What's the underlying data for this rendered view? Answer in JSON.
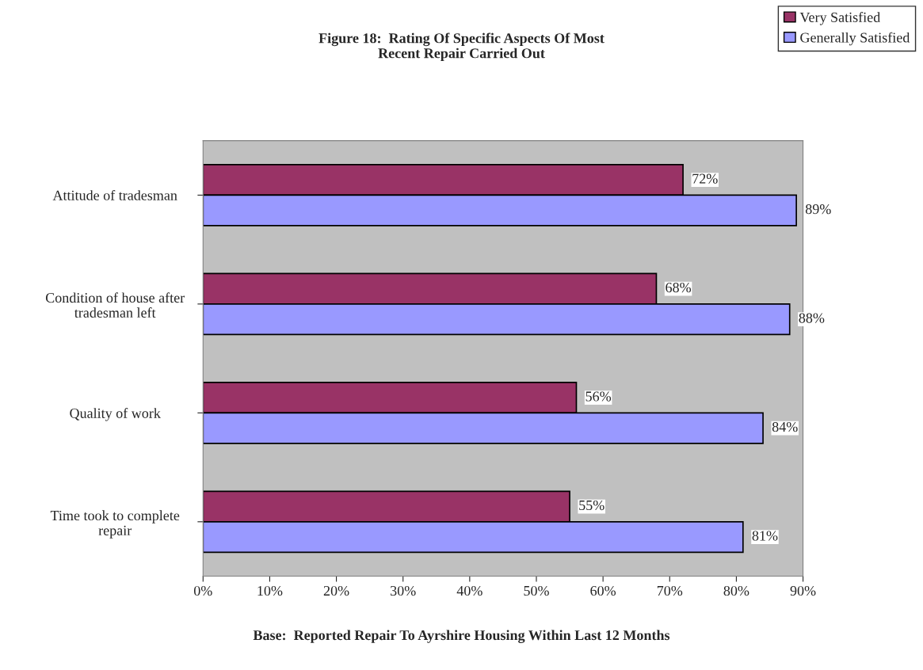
{
  "chart_data": {
    "type": "bar",
    "orientation": "horizontal",
    "title": "Figure 18:  Rating Of Specific Aspects Of Most\nRecent Repair Carried Out",
    "categories": [
      "Attitude of tradesman",
      "Condition of house after\ntradesman left",
      "Quality of work",
      "Time took to complete\nrepair"
    ],
    "series": [
      {
        "name": "Very Satisfied",
        "color": "#993366",
        "values": [
          72,
          68,
          56,
          55
        ],
        "value_labels": [
          "72%",
          "68%",
          "56%",
          "55%"
        ]
      },
      {
        "name": "Generally Satisfied",
        "color": "#9999ff",
        "values": [
          89,
          88,
          84,
          81
        ],
        "value_labels": [
          "89%",
          "88%",
          "84%",
          "81%"
        ]
      }
    ],
    "xlim": [
      0,
      90
    ],
    "xticks": [
      {
        "value": 0,
        "label": "0%"
      },
      {
        "value": 10,
        "label": "10%"
      },
      {
        "value": 20,
        "label": "20%"
      },
      {
        "value": 30,
        "label": "30%"
      },
      {
        "value": 40,
        "label": "40%"
      },
      {
        "value": 50,
        "label": "50%"
      },
      {
        "value": 60,
        "label": "60%"
      },
      {
        "value": 70,
        "label": "70%"
      },
      {
        "value": 80,
        "label": "80%"
      },
      {
        "value": 90,
        "label": "90%"
      }
    ],
    "grid": false,
    "legend": "top right",
    "annotations": [
      "Base:  Reported Repair To Ayrshire Housing Within Last 12 Months"
    ]
  }
}
